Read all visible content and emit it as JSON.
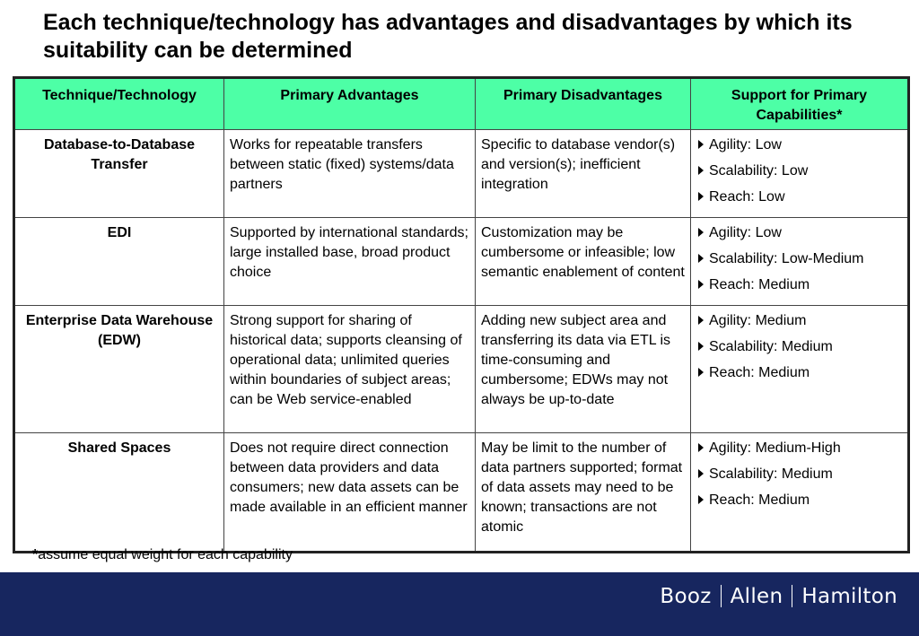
{
  "title": "Each technique/technology has advantages and disadvantages by which its suitability can be determined",
  "table": {
    "headers": [
      "Technique/Technology",
      "Primary Advantages",
      "Primary Disadvantages",
      "Support for Primary Capabilities*"
    ],
    "rows": [
      {
        "technique": "Database-to-Database Transfer",
        "advantages": "Works for repeatable transfers between static (fixed) systems/data partners",
        "disadvantages": "Specific to database vendor(s) and version(s); inefficient integration",
        "capabilities": [
          "Agility: Low",
          "Scalability: Low",
          "Reach: Low"
        ]
      },
      {
        "technique": "EDI",
        "advantages": "Supported by international standards; large installed base, broad product choice",
        "disadvantages": "Customization may be cumbersome or infeasible; low semantic enablement of content",
        "capabilities": [
          "Agility: Low",
          "Scalability: Low-Medium",
          "Reach: Medium"
        ]
      },
      {
        "technique": "Enterprise Data Warehouse (EDW)",
        "advantages": "Strong support for sharing of historical data; supports cleansing of operational data; unlimited queries within boundaries of subject areas; can be Web service-enabled",
        "disadvantages": "Adding new subject area and transferring its data via ETL is time-consuming and cumbersome; EDWs may not always be up-to-date",
        "capabilities": [
          "Agility: Medium",
          "Scalability: Medium",
          "Reach: Medium"
        ]
      },
      {
        "technique": "Shared Spaces",
        "advantages": "Does not require direct connection between data providers and data consumers; new data assets can be made available in an efficient manner",
        "disadvantages": "May be limit to the number of data partners supported; format of data assets may need to be known; transactions are not atomic",
        "capabilities": [
          "Agility: Medium-High",
          "Scalability: Medium",
          "Reach: Medium"
        ]
      }
    ]
  },
  "footnote": {
    "marker": "*",
    "text": "assume equal weight for each capability"
  },
  "footer": {
    "brand_parts": [
      "Booz",
      "Allen",
      "Hamilton"
    ],
    "background_color": "#17265f"
  },
  "colors": {
    "header_fill": "#4dffa6"
  },
  "icons": {
    "bullet": "triangle-right-bullet-icon"
  }
}
